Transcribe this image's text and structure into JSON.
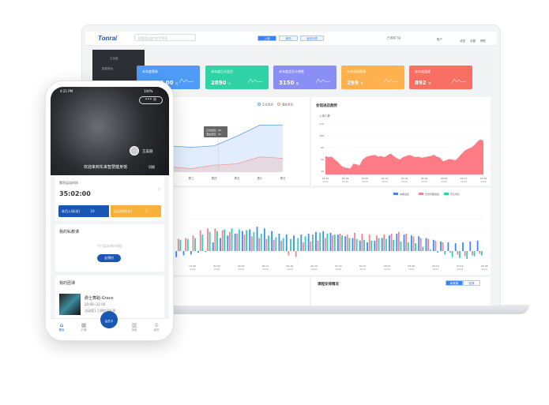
{
  "dashboard": {
    "logo": "Tonrai",
    "search_placeholder": "搜索会员姓名/手机号",
    "tabs": [
      "入场",
      "离场",
      "返回列表"
    ],
    "store": "已选择门店",
    "account": "账户",
    "icons": [
      {
        "icon": "bell-icon",
        "label": "消息"
      },
      {
        "icon": "gear-icon",
        "label": "设置"
      },
      {
        "icon": "help-icon",
        "label": "帮助"
      }
    ],
    "sidebar": {
      "section": "主功能",
      "item": "智能前台"
    },
    "cards": [
      {
        "title": "本年度营收",
        "value": "10,888.00",
        "unit": "元",
        "color": "#4e9bf8"
      },
      {
        "title": "本年度正式会员",
        "value": "2890",
        "unit": "人",
        "color": "#2fd3a6"
      },
      {
        "title": "本年度会员卡销售",
        "value": "3150",
        "unit": "张",
        "color": "#8a8ff5"
      },
      {
        "title": "本年度私教课",
        "value": "299",
        "unit": "节",
        "color": "#ffb14e"
      },
      {
        "title": "本年度团课",
        "value": "892",
        "unit": "节",
        "color": "#fa6f64"
      }
    ],
    "bottom_panel": {
      "title": "课程安排情况",
      "buttons": [
        "私教课",
        "团课"
      ]
    }
  },
  "chart_data": [
    {
      "type": "area",
      "categories": [
        "周二",
        "周三",
        "周四",
        "周五",
        "周六",
        "周日"
      ],
      "series": [
        {
          "name": "正式会员",
          "values": [
            38,
            36,
            38,
            52,
            68,
            68
          ],
          "color": "#5b9cf5"
        },
        {
          "name": "潜在会员",
          "values": [
            8,
            5,
            10,
            12,
            22,
            20
          ],
          "color": "#f29b8f"
        }
      ],
      "tooltip": [
        "正式会员：40",
        "潜在会员：11"
      ],
      "ylim": [
        0,
        80
      ]
    },
    {
      "type": "area",
      "title": "会馆进店趋势",
      "ylabel": "入场人数",
      "yticks": [
        10,
        50,
        90,
        130,
        170
      ],
      "ylim": [
        0,
        180
      ],
      "xticks": [
        "01.22",
        "01.29",
        "02.05",
        "02.12",
        "02.19",
        "02.26",
        "03.04",
        "03.11",
        "03.18"
      ],
      "xsub": "2020",
      "values": [
        62,
        58,
        60,
        50,
        42,
        30,
        24,
        22,
        20,
        36,
        34,
        30,
        50,
        58,
        62,
        64,
        66,
        60,
        62,
        58,
        64,
        70,
        62,
        55,
        50,
        58,
        62,
        66,
        62,
        58,
        60,
        56,
        58,
        60,
        62,
        66,
        60,
        56,
        44,
        48,
        52,
        50,
        48,
        58,
        70,
        80,
        86,
        90,
        98,
        110,
        118,
        112
      ],
      "color": "#ff7b86"
    },
    {
      "type": "bar",
      "xticks": [
        "01.26",
        "01.30",
        "02.03",
        "02.07",
        "02.11",
        "02.15",
        "02.19",
        "02.23",
        "02.27",
        "03.02",
        "03.06",
        "03.10",
        "03.14",
        "03.18"
      ],
      "xsub": "2020",
      "series": [
        {
          "name": "本期进店",
          "color": "#3e8bf0",
          "values": [
            -18,
            -14,
            -10,
            -8,
            -4,
            -2,
            20,
            30,
            36,
            40,
            46,
            50,
            56,
            52,
            46,
            40,
            38,
            36,
            38,
            40,
            44,
            46,
            42,
            38,
            34,
            30,
            24,
            20,
            24,
            30,
            36,
            40,
            38,
            36,
            34,
            30,
            26,
            22,
            20,
            18,
            20,
            22,
            24
          ]
        },
        {
          "name": "历史同期进店",
          "color": "#f4838f",
          "values": [
            24,
            28,
            30,
            36,
            48,
            52,
            52,
            48,
            44,
            40,
            38,
            34,
            30,
            28,
            26,
            24,
            -10,
            -14,
            20,
            22,
            24,
            30,
            36,
            40,
            38,
            42,
            40,
            38,
            36,
            38,
            40,
            44,
            40,
            34,
            30,
            28,
            24,
            20,
            -4,
            -8,
            -12,
            -10,
            -6
          ]
        },
        {
          "name": "环比增长",
          "color": "#2ad0b0",
          "values": [
            22,
            26,
            28,
            30,
            38,
            44,
            46,
            50,
            52,
            50,
            48,
            44,
            40,
            36,
            32,
            30,
            28,
            30,
            34,
            38,
            42,
            40,
            38,
            36,
            30,
            28,
            26,
            24,
            30,
            28,
            26,
            22,
            20,
            18,
            10,
            4,
            -4,
            -8,
            -14,
            -16,
            -18,
            -12,
            -10
          ]
        }
      ]
    }
  ],
  "phone": {
    "time": "4:21 PM",
    "battery": "100%",
    "user": "王美丽",
    "welcome": "欢迎来到东来智慧健身馆",
    "switch": "切换",
    "sport_label": "累积运动时间",
    "sport_time": "35:02:00",
    "entry_label": "本月入场(次)",
    "entry_value": "10",
    "rank_label": "当月排名(名)",
    "rank_value": "5",
    "private": {
      "title": "我的私教课",
      "empty": "今日暂未预约课程",
      "button": "去预约"
    },
    "group": {
      "title": "我的团课",
      "name": "爵士舞蹈-Grace",
      "time": "20:00~21:00",
      "place": "活动室1 已预约19/30"
    },
    "nav": [
      "首页",
      "约课",
      "会员卡",
      "场馆",
      "我的"
    ]
  }
}
